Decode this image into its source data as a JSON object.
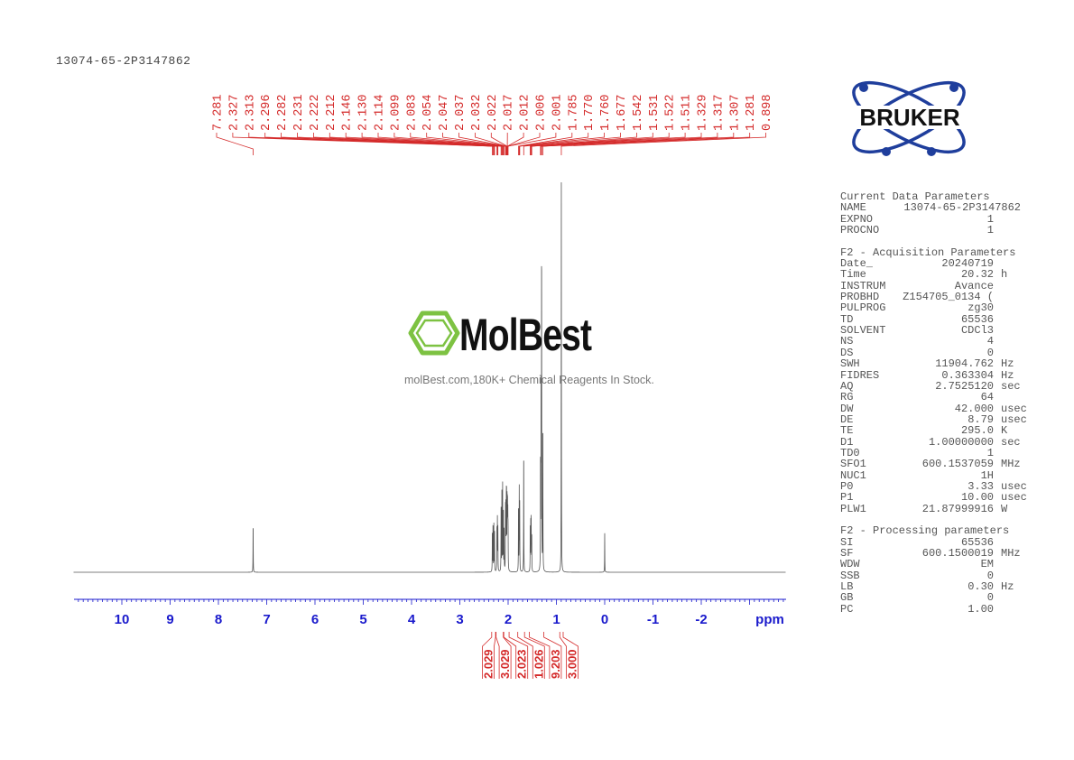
{
  "title": "13074-65-2P3147862",
  "watermark": {
    "brand": "MolBest",
    "tagline": "molBest.com,180K+ Chemical Reagents In Stock.",
    "color": "#7dc242"
  },
  "logo": {
    "text": "BRUKER",
    "color": "#1f3e9c"
  },
  "parameters": {
    "current": {
      "header": "Current Data Parameters",
      "rows": [
        {
          "name": "NAME",
          "value": "13074-65-2P3147862",
          "unit": "",
          "wide": true
        },
        {
          "name": "EXPNO",
          "value": "1",
          "unit": ""
        },
        {
          "name": "PROCNO",
          "value": "1",
          "unit": ""
        }
      ]
    },
    "acquisition": {
      "header": "F2 - Acquisition Parameters",
      "rows": [
        {
          "name": "Date_",
          "value": "20240719",
          "unit": ""
        },
        {
          "name": "Time",
          "value": "20.32",
          "unit": "h"
        },
        {
          "name": "INSTRUM",
          "value": "Avance",
          "unit": ""
        },
        {
          "name": "PROBHD",
          "value": "Z154705_0134 (",
          "unit": ""
        },
        {
          "name": "PULPROG",
          "value": "zg30",
          "unit": ""
        },
        {
          "name": "TD",
          "value": "65536",
          "unit": ""
        },
        {
          "name": "SOLVENT",
          "value": "CDCl3",
          "unit": ""
        },
        {
          "name": "NS",
          "value": "4",
          "unit": ""
        },
        {
          "name": "DS",
          "value": "0",
          "unit": ""
        },
        {
          "name": "SWH",
          "value": "11904.762",
          "unit": "Hz"
        },
        {
          "name": "FIDRES",
          "value": "0.363304",
          "unit": "Hz"
        },
        {
          "name": "AQ",
          "value": "2.7525120",
          "unit": "sec"
        },
        {
          "name": "RG",
          "value": "64",
          "unit": ""
        },
        {
          "name": "DW",
          "value": "42.000",
          "unit": "usec"
        },
        {
          "name": "DE",
          "value": "8.79",
          "unit": "usec"
        },
        {
          "name": "TE",
          "value": "295.0",
          "unit": "K"
        },
        {
          "name": "D1",
          "value": "1.00000000",
          "unit": "sec"
        },
        {
          "name": "TD0",
          "value": "1",
          "unit": ""
        },
        {
          "name": "SFO1",
          "value": "600.1537059",
          "unit": "MHz"
        },
        {
          "name": "NUC1",
          "value": "1H",
          "unit": ""
        },
        {
          "name": "P0",
          "value": "3.33",
          "unit": "usec"
        },
        {
          "name": "P1",
          "value": "10.00",
          "unit": "usec"
        },
        {
          "name": "PLW1",
          "value": "21.87999916",
          "unit": "W"
        }
      ]
    },
    "processing": {
      "header": "F2 - Processing parameters",
      "rows": [
        {
          "name": "SI",
          "value": "65536",
          "unit": ""
        },
        {
          "name": "SF",
          "value": "600.1500019",
          "unit": "MHz"
        },
        {
          "name": "WDW",
          "value": "EM",
          "unit": ""
        },
        {
          "name": "SSB",
          "value": "0",
          "unit": ""
        },
        {
          "name": "LB",
          "value": "0.30",
          "unit": "Hz"
        },
        {
          "name": "GB",
          "value": "0",
          "unit": ""
        },
        {
          "name": "PC",
          "value": "1.00",
          "unit": ""
        }
      ]
    }
  },
  "chart_data": {
    "type": "line",
    "xlabel": "ppm",
    "xlim": [
      11.0,
      -3.75
    ],
    "x_reversed": true,
    "xticks": [
      "10",
      "9",
      "8",
      "7",
      "6",
      "5",
      "4",
      "3",
      "2",
      "1",
      "0",
      "-1",
      "-2"
    ],
    "grid": false,
    "colors": {
      "spectrum": "#555555",
      "labels": "#d42a2a",
      "axis": "#1a1acc"
    },
    "peak_labels": [
      "7.281",
      "2.327",
      "2.313",
      "2.296",
      "2.282",
      "2.231",
      "2.222",
      "2.212",
      "2.146",
      "2.130",
      "2.114",
      "2.099",
      "2.083",
      "2.054",
      "2.047",
      "2.037",
      "2.032",
      "2.022",
      "2.017",
      "2.012",
      "2.006",
      "2.001",
      "1.785",
      "1.770",
      "1.760",
      "1.677",
      "1.542",
      "1.531",
      "1.522",
      "1.511",
      "1.329",
      "1.317",
      "1.307",
      "1.281",
      "0.898"
    ],
    "peaks": [
      {
        "ppm": 7.281,
        "height": 13
      },
      {
        "ppm": 2.327,
        "height": 11
      },
      {
        "ppm": 2.313,
        "height": 13
      },
      {
        "ppm": 2.296,
        "height": 12
      },
      {
        "ppm": 2.282,
        "height": 10
      },
      {
        "ppm": 2.231,
        "height": 12
      },
      {
        "ppm": 2.222,
        "height": 13
      },
      {
        "ppm": 2.212,
        "height": 11
      },
      {
        "ppm": 2.146,
        "height": 16
      },
      {
        "ppm": 2.13,
        "height": 20
      },
      {
        "ppm": 2.114,
        "height": 22
      },
      {
        "ppm": 2.099,
        "height": 17
      },
      {
        "ppm": 2.083,
        "height": 12
      },
      {
        "ppm": 2.054,
        "height": 15
      },
      {
        "ppm": 2.047,
        "height": 17
      },
      {
        "ppm": 2.037,
        "height": 18
      },
      {
        "ppm": 2.032,
        "height": 16
      },
      {
        "ppm": 2.022,
        "height": 15
      },
      {
        "ppm": 2.017,
        "height": 14
      },
      {
        "ppm": 2.012,
        "height": 13
      },
      {
        "ppm": 2.006,
        "height": 12
      },
      {
        "ppm": 2.001,
        "height": 10
      },
      {
        "ppm": 1.785,
        "height": 18
      },
      {
        "ppm": 1.77,
        "height": 21
      },
      {
        "ppm": 1.76,
        "height": 17
      },
      {
        "ppm": 1.677,
        "height": 33
      },
      {
        "ppm": 1.542,
        "height": 11
      },
      {
        "ppm": 1.531,
        "height": 14
      },
      {
        "ppm": 1.522,
        "height": 13
      },
      {
        "ppm": 1.511,
        "height": 10
      },
      {
        "ppm": 1.329,
        "height": 30
      },
      {
        "ppm": 1.317,
        "height": 50
      },
      {
        "ppm": 1.307,
        "height": 86
      },
      {
        "ppm": 1.281,
        "height": 40
      },
      {
        "ppm": 0.898,
        "height": 100
      },
      {
        "ppm": 0.0,
        "height": 10
      }
    ],
    "integrals": [
      {
        "label": "2.029",
        "from": 2.34,
        "to": 2.26
      },
      {
        "label": "3.029",
        "from": 2.25,
        "to": 2.1
      },
      {
        "label": "2.023",
        "from": 2.09,
        "to": 1.98
      },
      {
        "label": "1.026",
        "from": 1.8,
        "to": 1.66
      },
      {
        "label": "9.203",
        "from": 1.56,
        "to": 1.26
      },
      {
        "label": "3.000",
        "from": 0.93,
        "to": 0.86
      }
    ]
  }
}
